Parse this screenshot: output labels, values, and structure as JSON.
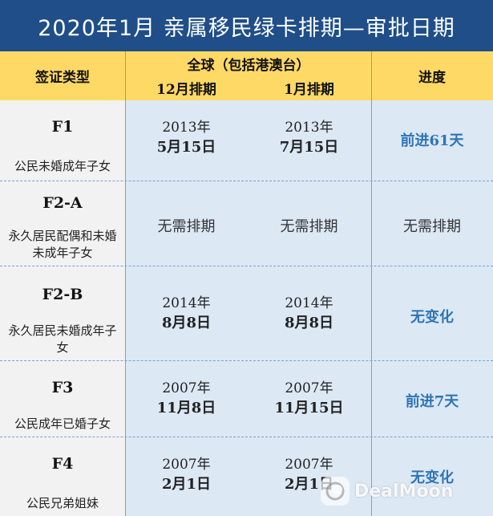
{
  "title": "2020年1月  亲属移民绿卡排期—审批日期",
  "header": {
    "visa_type": "签证类型",
    "global": "全球（包括港澳台）",
    "dec": "12月排期",
    "jan": "1月排期",
    "progress": "进度"
  },
  "rows": [
    {
      "code": "F1",
      "desc": "公民未婚成年子女",
      "dec_year": "2013年",
      "dec_md": "5月15日",
      "jan_year": "2013年",
      "jan_md": "7月15日",
      "progress": "前进61天"
    },
    {
      "code": "F2-A",
      "desc": "永久居民配偶和未婚未成年子女",
      "dec_text": "无需排期",
      "jan_text": "无需排期",
      "progress": "无需排期"
    },
    {
      "code": "F2-B",
      "desc": "永久居民未婚成年子女",
      "dec_year": "2014年",
      "dec_md": "8月8日",
      "jan_year": "2014年",
      "jan_md": "8月8日",
      "progress": "无变化"
    },
    {
      "code": "F3",
      "desc": "公民成年已婚子女",
      "dec_year": "2007年",
      "dec_md": "11月8日",
      "jan_year": "2007年",
      "jan_md": "11月15日",
      "progress": "前进7天"
    },
    {
      "code": "F4",
      "desc": "公民兄弟姐妹",
      "dec_year": "2007年",
      "dec_md": "2月1日",
      "jan_year": "2007年",
      "jan_md": "2月1日",
      "progress": "无变化"
    }
  ],
  "watermark": "DealMoon",
  "colors": {
    "title_bg": "#1f4e89",
    "header_bg": "#ffd966",
    "cell_bg": "#dde8f5",
    "progress": "#2e75b6"
  }
}
